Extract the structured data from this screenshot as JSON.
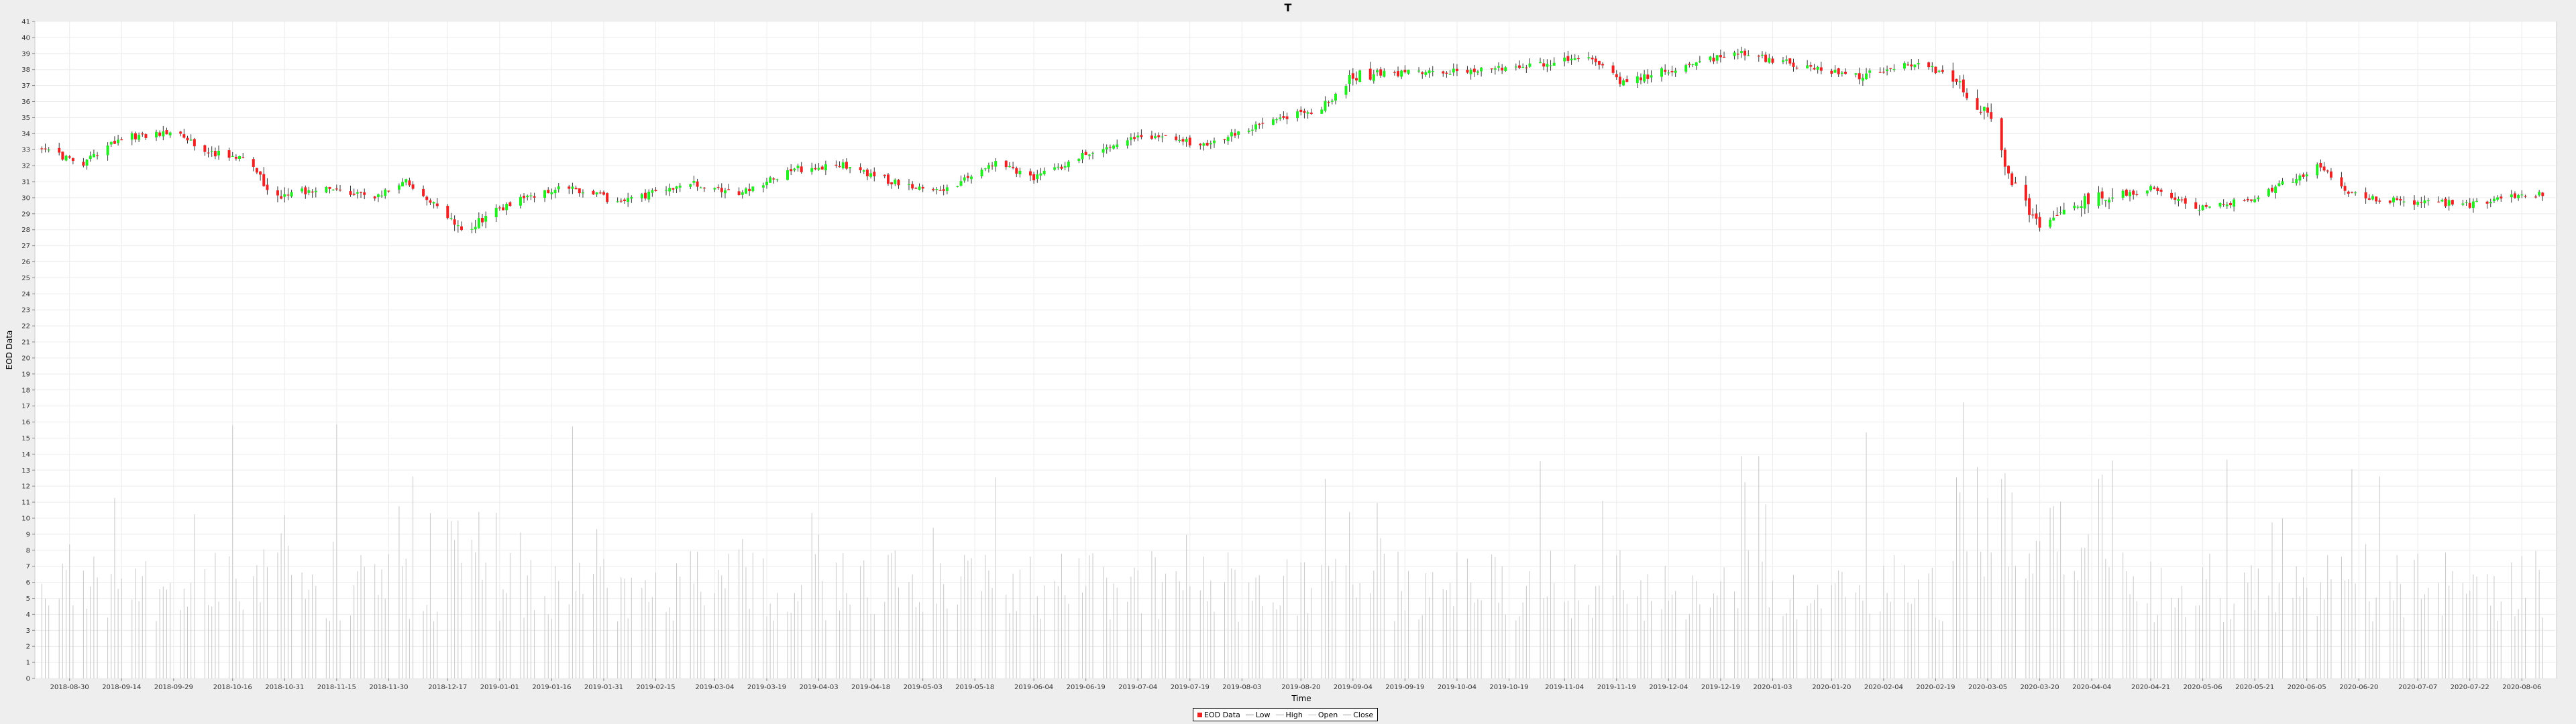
{
  "chart_data": {
    "type": "candlestick",
    "title": "T",
    "xlabel": "Time",
    "ylabel": "EOD Data",
    "ylim": [
      0,
      41
    ],
    "yticks": [
      0,
      1,
      2,
      3,
      4,
      5,
      6,
      7,
      8,
      9,
      10,
      11,
      12,
      13,
      14,
      15,
      16,
      17,
      18,
      19,
      20,
      21,
      22,
      23,
      24,
      25,
      26,
      27,
      28,
      29,
      30,
      31,
      32,
      33,
      34,
      35,
      36,
      37,
      38,
      39,
      40,
      41
    ],
    "x_range": [
      "2018-08-20",
      "2020-08-16"
    ],
    "x_ticks": [
      "2018-08-30",
      "2018-09-14",
      "2018-09-29",
      "2018-10-16",
      "2018-10-31",
      "2018-11-15",
      "2018-11-30",
      "2018-12-17",
      "2019-01-01",
      "2019-01-16",
      "2019-01-31",
      "2019-02-15",
      "2019-03-04",
      "2019-03-19",
      "2019-04-03",
      "2019-04-18",
      "2019-05-03",
      "2019-05-18",
      "2019-06-04",
      "2019-06-19",
      "2019-07-04",
      "2019-07-19",
      "2019-08-03",
      "2019-08-20",
      "2019-09-04",
      "2019-09-19",
      "2019-10-04",
      "2019-10-19",
      "2019-11-04",
      "2019-11-19",
      "2019-12-04",
      "2019-12-19",
      "2020-01-03",
      "2020-01-20",
      "2020-02-04",
      "2020-02-19",
      "2020-03-05",
      "2020-03-20",
      "2020-04-04",
      "2020-04-21",
      "2020-05-06",
      "2020-05-21",
      "2020-06-05",
      "2020-06-20",
      "2020-07-07",
      "2020-07-22",
      "2020-08-06"
    ],
    "grid": true,
    "legend_position": "bottom-center",
    "legend": [
      "EOD Data",
      "Low",
      "High",
      "Open",
      "Close"
    ],
    "colors": {
      "up": "#22ee22",
      "down": "#ee2222",
      "wick": "#333333",
      "volume": "#c8c8c8",
      "plot_bg": "#ffffff",
      "grid": "#ececec",
      "low": "#888888",
      "high": "#aaaaaa",
      "open": "#bbbbbb",
      "close": "#999999"
    },
    "price_path": [
      [
        "2018-08-22",
        33.0
      ],
      [
        "2018-09-03",
        32.2
      ],
      [
        "2018-09-15",
        33.8
      ],
      [
        "2018-09-30",
        34.0
      ],
      [
        "2018-10-10",
        32.8
      ],
      [
        "2018-10-20",
        32.4
      ],
      [
        "2018-10-29",
        29.9
      ],
      [
        "2018-11-10",
        30.6
      ],
      [
        "2018-11-25",
        30.0
      ],
      [
        "2018-12-05",
        31.0
      ],
      [
        "2018-12-22",
        27.9
      ],
      [
        "2019-01-05",
        29.8
      ],
      [
        "2019-01-20",
        30.7
      ],
      [
        "2019-02-05",
        29.7
      ],
      [
        "2019-02-25",
        30.9
      ],
      [
        "2019-03-10",
        30.2
      ],
      [
        "2019-03-28",
        31.8
      ],
      [
        "2019-04-10",
        32.0
      ],
      [
        "2019-04-28",
        30.7
      ],
      [
        "2019-05-10",
        30.6
      ],
      [
        "2019-05-24",
        32.1
      ],
      [
        "2019-06-04",
        31.2
      ],
      [
        "2019-06-20",
        32.8
      ],
      [
        "2019-07-06",
        33.9
      ],
      [
        "2019-07-24",
        33.3
      ],
      [
        "2019-08-10",
        34.8
      ],
      [
        "2019-08-26",
        35.6
      ],
      [
        "2019-09-04",
        37.6
      ],
      [
        "2019-09-20",
        37.8
      ],
      [
        "2019-10-10",
        37.9
      ],
      [
        "2019-10-25",
        38.2
      ],
      [
        "2019-11-10",
        38.9
      ],
      [
        "2019-11-21",
        37.1
      ],
      [
        "2019-12-04",
        38.0
      ],
      [
        "2019-12-24",
        39.0
      ],
      [
        "2020-01-10",
        38.3
      ],
      [
        "2020-01-28",
        37.6
      ],
      [
        "2020-02-12",
        38.4
      ],
      [
        "2020-02-22",
        37.8
      ],
      [
        "2020-03-05",
        35.2
      ],
      [
        "2020-03-12",
        31.0
      ],
      [
        "2020-03-20",
        28.0
      ],
      [
        "2020-04-04",
        30.0
      ],
      [
        "2020-04-21",
        30.5
      ],
      [
        "2020-05-06",
        29.3
      ],
      [
        "2020-05-18",
        29.8
      ],
      [
        "2020-06-08",
        31.9
      ],
      [
        "2020-06-20",
        30.0
      ],
      [
        "2020-07-07",
        29.7
      ],
      [
        "2020-07-22",
        29.6
      ],
      [
        "2020-08-10",
        30.2
      ]
    ]
  }
}
